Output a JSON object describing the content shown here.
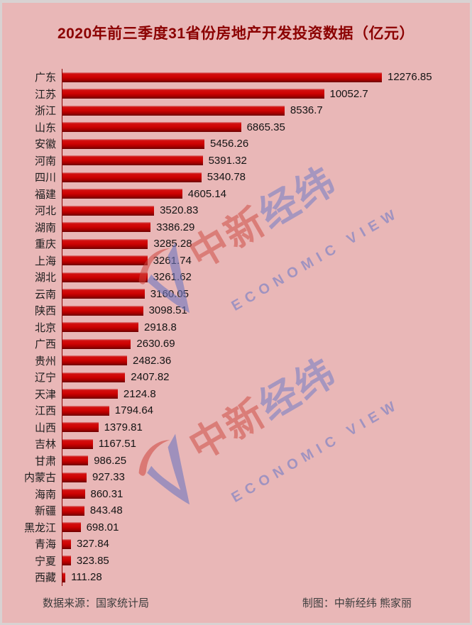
{
  "title": "2020年前三季度31省份房地产开发投资数据（亿元）",
  "chart_data": {
    "type": "bar",
    "orientation": "horizontal",
    "title": "2020年前三季度31省份房地产开发投资数据（亿元）",
    "xlabel": "",
    "ylabel": "",
    "xlim": [
      0,
      12276.85
    ],
    "grid": false,
    "bar_color": "#c00000",
    "categories": [
      "广东",
      "江苏",
      "浙江",
      "山东",
      "安徽",
      "河南",
      "四川",
      "福建",
      "河北",
      "湖南",
      "重庆",
      "上海",
      "湖北",
      "云南",
      "陕西",
      "北京",
      "广西",
      "贵州",
      "辽宁",
      "天津",
      "江西",
      "山西",
      "吉林",
      "甘肃",
      "内蒙古",
      "海南",
      "新疆",
      "黑龙江",
      "青海",
      "宁夏",
      "西藏"
    ],
    "values": [
      12276.85,
      10052.7,
      8536.7,
      6865.35,
      5456.26,
      5391.32,
      5340.78,
      4605.14,
      3520.83,
      3386.29,
      3285.28,
      3261.74,
      3261.62,
      3160.05,
      3098.51,
      2918.8,
      2630.69,
      2482.36,
      2407.82,
      2124.8,
      1794.64,
      1379.81,
      1167.51,
      986.25,
      927.33,
      860.31,
      843.48,
      698.01,
      327.84,
      323.85,
      111.28
    ]
  },
  "footer": {
    "source": "数据来源：国家统计局",
    "credit": "制图：中新经纬 熊家丽"
  },
  "watermark": {
    "cn_red": "中新",
    "cn_blue": "经纬",
    "en": "ECONOMIC VIEW"
  },
  "colors": {
    "background": "#e9b7b7",
    "edge": "#d8d2d2",
    "bar": "#c00000",
    "axis": "#8b0000",
    "title_text": "#8b0000",
    "value_text": "#141414",
    "watermark_red": "rgba(205,78,70,0.55)",
    "watermark_blue": "rgba(122,128,196,0.60)"
  }
}
